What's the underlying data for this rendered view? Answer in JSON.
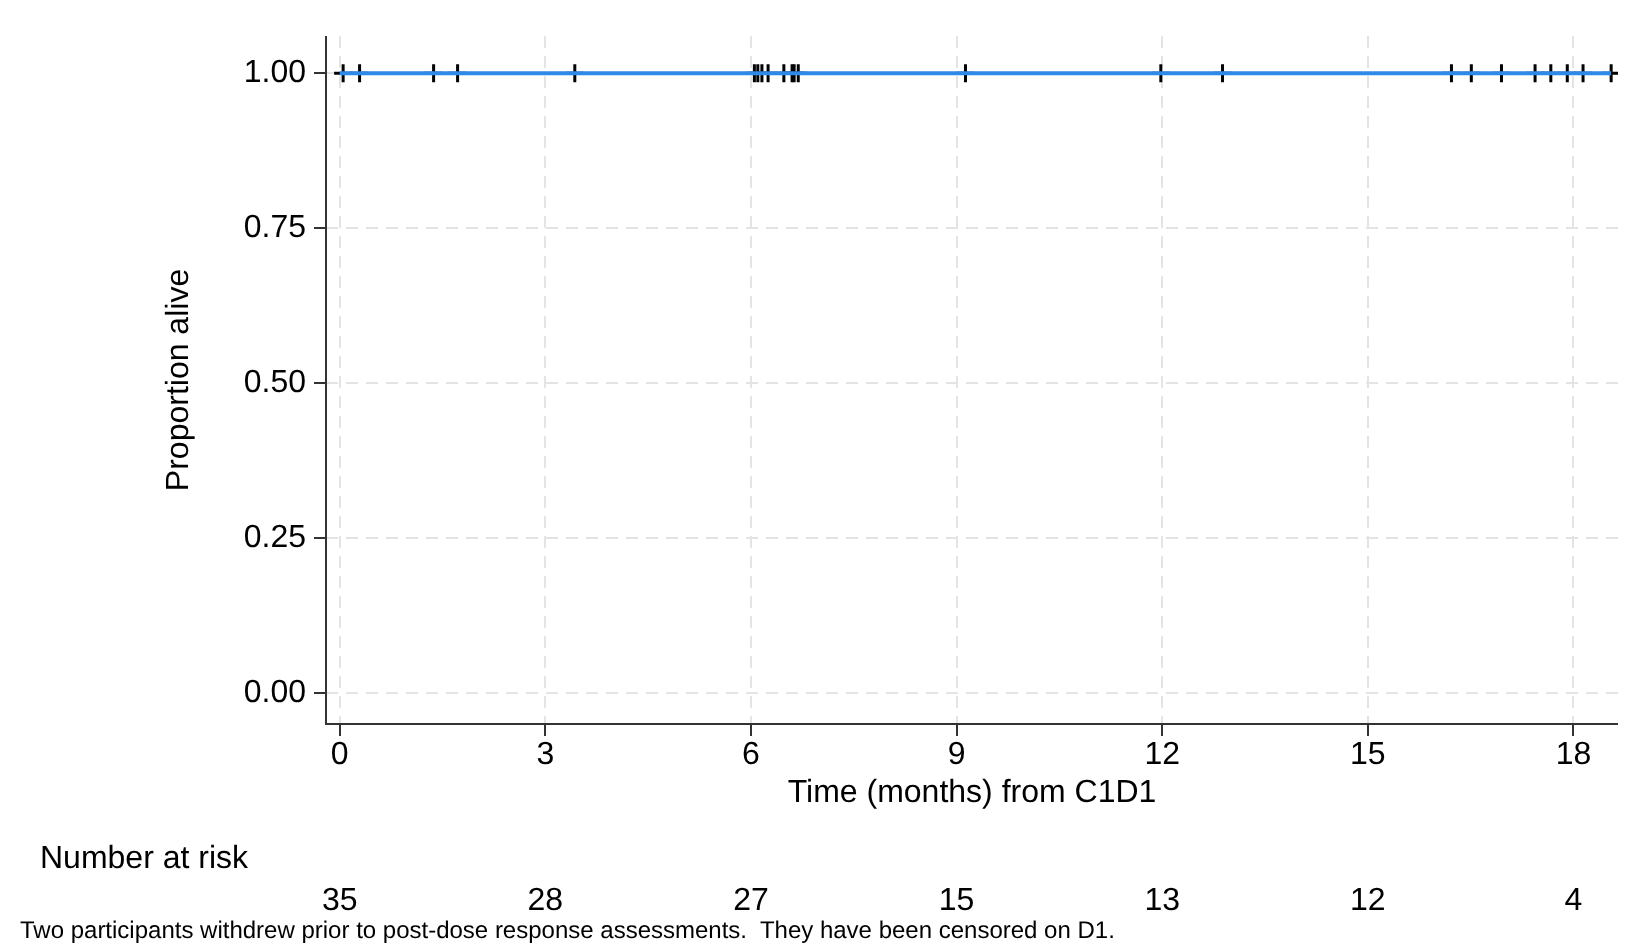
{
  "chart_data": {
    "type": "step",
    "xlabel": "Time (months) from C1D1",
    "ylabel": "Proportion alive",
    "xlim": [
      -0.2,
      18.65
    ],
    "xticks": [
      0,
      3,
      6,
      9,
      12,
      15,
      18
    ],
    "ylim": [
      -0.05,
      1.06
    ],
    "yticks": [
      {
        "value": 0,
        "label": "0.00"
      },
      {
        "value": 0.25,
        "label": "0.25"
      },
      {
        "value": 0.5,
        "label": "0.50"
      },
      {
        "value": 0.75,
        "label": "0.75"
      },
      {
        "value": 1,
        "label": "1.00"
      }
    ],
    "grid": true,
    "legend": false,
    "series": [
      {
        "color": "#2e8ae6",
        "x": [
          0,
          18.55
        ],
        "values": [
          1,
          1
        ]
      },
      {
        "type": "scatter",
        "color": "#000000",
        "marker": "cross",
        "x": [
          0.05,
          0.29,
          1.37,
          1.72,
          3.43,
          6.05,
          6.1,
          6.16,
          6.25,
          6.48,
          6.6,
          6.63,
          6.69,
          9.13,
          11.98,
          12.88,
          16.22,
          16.51,
          16.95,
          17.44,
          17.67,
          17.91,
          18.14,
          18.55
        ],
        "values": [
          1,
          1,
          1,
          1,
          1,
          1,
          1,
          1,
          1,
          1,
          1,
          1,
          1,
          1,
          1,
          1,
          1,
          1,
          1,
          1,
          1,
          1,
          1,
          1
        ]
      }
    ],
    "annotations": [
      "Number at risk",
      "35",
      "28",
      "27",
      "15",
      "13",
      "12",
      "4",
      "Two participants withdrew prior to post-dose response assessments.  They have been censored on D1."
    ]
  }
}
